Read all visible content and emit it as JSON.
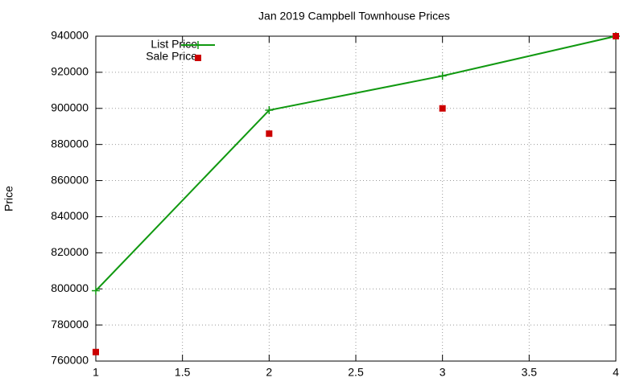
{
  "chart_data": {
    "type": "line",
    "title": "Jan 2019 Campbell Townhouse Prices",
    "y_label": "Price",
    "x": [
      1,
      2,
      3,
      4
    ],
    "series": [
      {
        "name": "List Price",
        "color": "#119911",
        "mode": "linespoints",
        "values": [
          799000,
          899000,
          918000,
          940000
        ]
      },
      {
        "name": "Sale Price",
        "color": "#cc0000",
        "mode": "points",
        "values": [
          765000,
          886000,
          900000,
          940000
        ]
      }
    ],
    "xlim": [
      1,
      4
    ],
    "xticks": [
      1,
      1.5,
      2,
      2.5,
      3,
      3.5,
      4
    ],
    "ylim": [
      760000,
      940000
    ],
    "yticks": [
      760000,
      780000,
      800000,
      820000,
      840000,
      860000,
      880000,
      900000,
      920000,
      940000
    ],
    "grid": true,
    "legend": "top-left"
  }
}
